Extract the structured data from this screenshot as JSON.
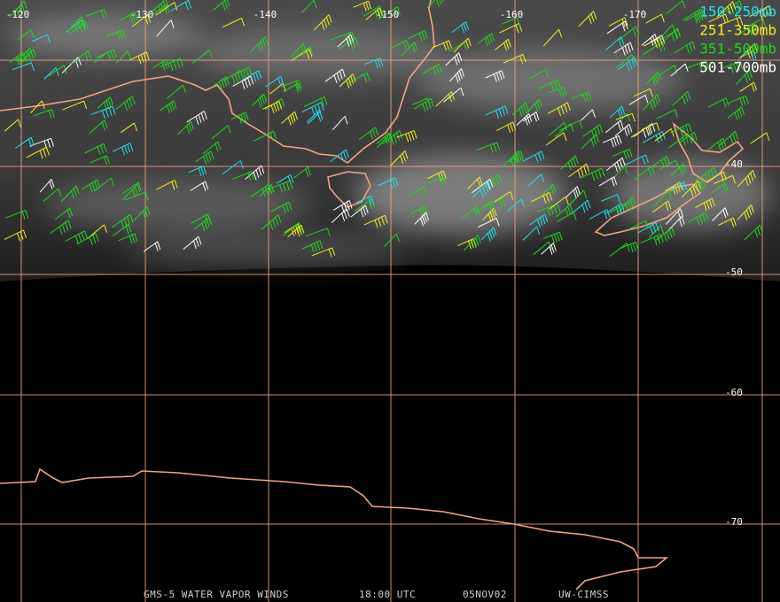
{
  "longitude_labels": [
    "-120",
    "-130",
    "-140",
    "-150",
    "-160",
    "-170"
  ],
  "latitude_labels": [
    "-40",
    "-50",
    "-60",
    "-70"
  ],
  "legend": [
    {
      "label": "150-250mb",
      "color": "#22e0f0"
    },
    {
      "label": "251-350mb",
      "color": "#f4f020"
    },
    {
      "label": "351-500mb",
      "color": "#20d820"
    },
    {
      "label": "501-700mb",
      "color": "#ffffff"
    }
  ],
  "footer": [
    "GMS-5 WATER VAPOR WINDS",
    "18:00 UTC",
    "05NOV02",
    "UW-CIMSS"
  ]
}
